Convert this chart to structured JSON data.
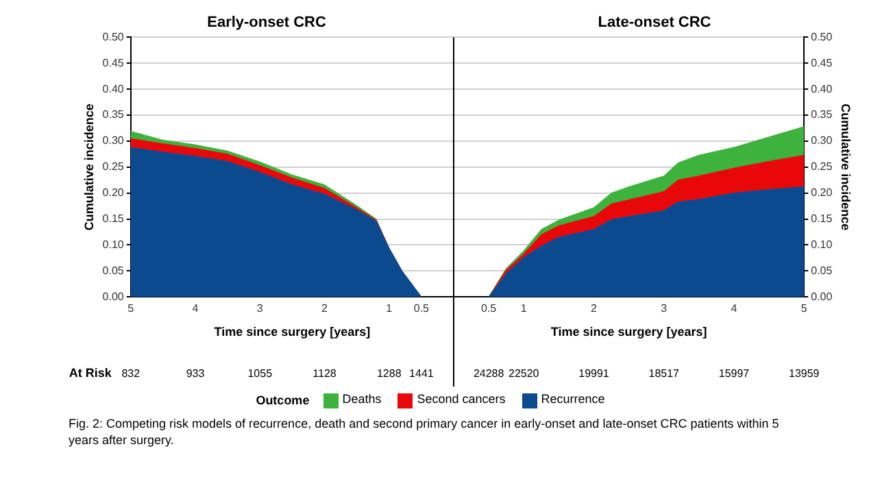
{
  "chart_data": [
    {
      "type": "area",
      "title": "Early-onset CRC",
      "xlabel": "Time since surgery [years]",
      "ylabel": "Cumulative incidence",
      "stacked": true,
      "grid": "y",
      "x": [
        5,
        4.5,
        4,
        3.5,
        3,
        2.5,
        2,
        1.5,
        1.2,
        1,
        0.8,
        0.5
      ],
      "series": [
        {
          "color": "#0c4a8f",
          "values": [
            0.288,
            0.279,
            0.271,
            0.261,
            0.24,
            0.216,
            0.198,
            0.168,
            0.146,
            0.094,
            0.05,
            0
          ]
        },
        {
          "color": "#e8080a",
          "values": [
            0.017,
            0.016,
            0.015,
            0.014,
            0.013,
            0.013,
            0.011,
            0.004,
            0.002,
            0,
            0,
            0
          ]
        },
        {
          "color": "#3db23d",
          "values": [
            0.014,
            0.007,
            0.007,
            0.006,
            0.007,
            0.006,
            0.007,
            0.004,
            0.002,
            0,
            0,
            0
          ]
        }
      ],
      "xlim": [
        5,
        0
      ],
      "xticks": [
        5,
        4,
        3,
        2,
        1,
        0.5
      ],
      "ylim": [
        0,
        0.5
      ],
      "yticks": [
        {
          "value": 0,
          "label": "0.00"
        },
        {
          "value": 0.05,
          "label": "0.05"
        },
        {
          "value": 0.1,
          "label": "0.10"
        },
        {
          "value": 0.15,
          "label": "0.15"
        },
        {
          "value": 0.2,
          "label": "0.20"
        },
        {
          "value": 0.25,
          "label": "0.25"
        },
        {
          "value": 0.3,
          "label": "0.30"
        },
        {
          "value": 0.35,
          "label": "0.35"
        },
        {
          "value": 0.4,
          "label": "0.40"
        },
        {
          "value": 0.45,
          "label": "0.45"
        },
        {
          "value": 0.5,
          "label": "0.50"
        }
      ],
      "annotations": [
        "At Risk",
        "832",
        "933",
        "1055",
        "1128",
        "1288",
        "1441"
      ]
    },
    {
      "type": "area",
      "title": "Late-onset CRC",
      "xlabel": "Time since surgery [years]",
      "ylabel": "Cumulative incidence",
      "stacked": true,
      "grid": "y",
      "legend": "bottom",
      "legend_title": "Outcome",
      "x": [
        0.5,
        0.75,
        1,
        1.25,
        1.5,
        2,
        2.25,
        2.5,
        3,
        3.2,
        3.5,
        4,
        4.5,
        5
      ],
      "series": [
        {
          "name": "Recurrence",
          "color": "#0c4a8f",
          "values": [
            0,
            0.045,
            0.076,
            0.098,
            0.115,
            0.13,
            0.149,
            0.155,
            0.166,
            0.183,
            0.188,
            0.2,
            0.207,
            0.212
          ]
        },
        {
          "name": "Second cancers",
          "color": "#e8080a",
          "values": [
            0,
            0.007,
            0.007,
            0.022,
            0.022,
            0.025,
            0.03,
            0.032,
            0.037,
            0.042,
            0.045,
            0.048,
            0.054,
            0.061
          ]
        },
        {
          "name": "Deaths",
          "color": "#3db23d",
          "values": [
            0,
            0.003,
            0.006,
            0.01,
            0.011,
            0.017,
            0.021,
            0.025,
            0.03,
            0.033,
            0.04,
            0.04,
            0.047,
            0.055
          ]
        }
      ],
      "xlim": [
        0,
        5
      ],
      "xticks": [
        0.5,
        1,
        2,
        3,
        4,
        5
      ],
      "ylim": [
        0,
        0.5
      ],
      "yticks": [
        {
          "value": 0,
          "label": "0.00"
        },
        {
          "value": 0.05,
          "label": "0.05"
        },
        {
          "value": 0.1,
          "label": "0.10"
        },
        {
          "value": 0.15,
          "label": "0.15"
        },
        {
          "value": 0.2,
          "label": "0.20"
        },
        {
          "value": 0.25,
          "label": "0.25"
        },
        {
          "value": 0.3,
          "label": "0.30"
        },
        {
          "value": 0.35,
          "label": "0.35"
        },
        {
          "value": 0.4,
          "label": "0.40"
        },
        {
          "value": 0.45,
          "label": "0.45"
        },
        {
          "value": 0.5,
          "label": "0.50"
        }
      ],
      "annotations": [
        "24288",
        "22520",
        "19991",
        "18517",
        "15997",
        "13959",
        "Fig. 2: Competing risk models of recurrence, death and second primary cancer in early-onset and late-onset CRC patients within 5 years after surgery."
      ]
    }
  ]
}
